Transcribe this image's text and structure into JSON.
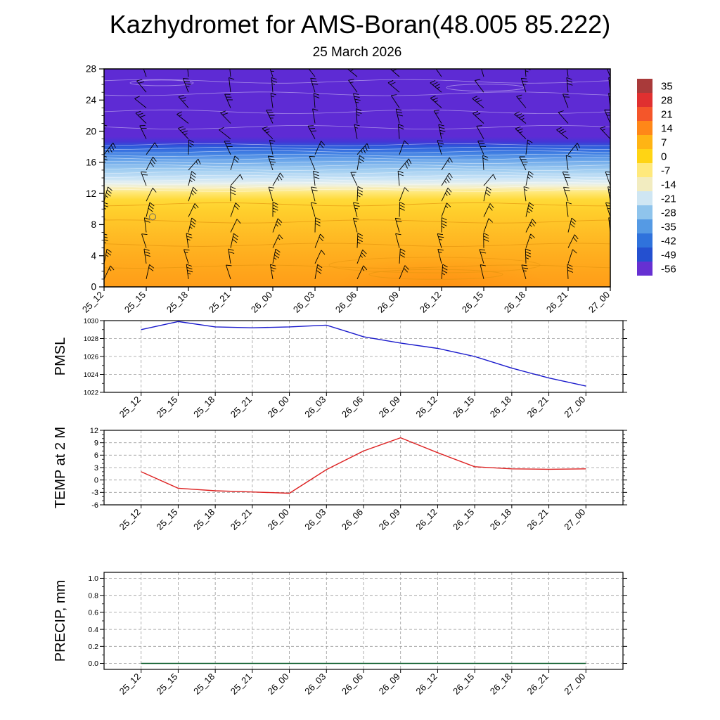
{
  "title": "Kazhydromet for AMS-Boran(48.005 85.222)",
  "subtitle": "25 March 2026",
  "time_labels": [
    "25_12",
    "25_15",
    "25_18",
    "25_21",
    "26_00",
    "26_03",
    "26_06",
    "26_09",
    "26_12",
    "26_15",
    "26_18",
    "26_21",
    "27_00"
  ],
  "chart_data": [
    {
      "type": "heatmap",
      "name": "Temperature-height cross section with wind barbs",
      "x": [
        "25_12",
        "25_15",
        "25_18",
        "25_21",
        "26_00",
        "26_03",
        "26_06",
        "26_09",
        "26_12",
        "26_15",
        "26_18",
        "26_21",
        "27_00"
      ],
      "ylim": [
        0,
        28
      ],
      "y_major_ticks": [
        0,
        4,
        8,
        12,
        16,
        20,
        24,
        28
      ],
      "gradient_stops": [
        {
          "at": 0.0,
          "color": "#5e2bd4"
        },
        {
          "at": 0.31,
          "color": "#5e2bd4"
        },
        {
          "at": 0.335,
          "color": "#4436d6"
        },
        {
          "at": 0.355,
          "color": "#2c58da"
        },
        {
          "at": 0.385,
          "color": "#3f7ee2"
        },
        {
          "at": 0.42,
          "color": "#6ca7ea"
        },
        {
          "at": 0.46,
          "color": "#9ccaf0"
        },
        {
          "at": 0.5,
          "color": "#c6e2f6"
        },
        {
          "at": 0.525,
          "color": "#e6f0ef"
        },
        {
          "at": 0.545,
          "color": "#f7efc0"
        },
        {
          "at": 0.565,
          "color": "#ffe97c"
        },
        {
          "at": 0.6,
          "color": "#ffda38"
        },
        {
          "at": 0.65,
          "color": "#ffcf2c"
        },
        {
          "at": 0.74,
          "color": "#ffbf26"
        },
        {
          "at": 0.86,
          "color": "#ffad1e"
        },
        {
          "at": 1.0,
          "color": "#ff9d18"
        }
      ],
      "overlays": {
        "striation_band": [
          12.4,
          18.6
        ],
        "white_contour_levels": [
          20.5,
          22.5,
          24.8,
          26.4
        ],
        "orange_contour_levels": [
          2.6,
          5.4,
          8.4,
          10.6
        ],
        "marker_circle": {
          "x_index": 1.15,
          "level": 9
        }
      },
      "colorbar": {
        "tick_labels": [
          "35",
          "28",
          "21",
          "14",
          "7",
          "0",
          "-7",
          "-14",
          "-21",
          "-28",
          "-35",
          "-42",
          "-49",
          "-56"
        ],
        "colors": [
          "#a93a3a",
          "#e03030",
          "#f4562a",
          "#ff8718",
          "#ffb414",
          "#ffd414",
          "#ffe97c",
          "#f2ecc0",
          "#cfe6f3",
          "#8fc4ec",
          "#559ae4",
          "#2f72dc",
          "#2450d0",
          "#6630d2"
        ]
      }
    },
    {
      "type": "line",
      "name": "PMSL",
      "color": "#1a1acc",
      "ylim": [
        1022,
        1030
      ],
      "y_major_ticks": [
        1022,
        1024,
        1026,
        1028,
        1030
      ],
      "y_tick_labels": [
        "1022",
        "1024",
        "1026",
        "1028",
        "1030"
      ],
      "y_minor_step": 1,
      "x": [
        "25_12",
        "25_15",
        "25_18",
        "25_21",
        "26_00",
        "26_03",
        "26_06",
        "26_09",
        "26_12",
        "26_15",
        "26_18",
        "26_21",
        "27_00"
      ],
      "values": [
        1029.0,
        1029.9,
        1029.3,
        1029.2,
        1029.3,
        1029.5,
        1028.2,
        1027.5,
        1026.9,
        1026.0,
        1024.7,
        1023.6,
        1022.7
      ]
    },
    {
      "type": "line",
      "name": "TEMP at 2 M",
      "color": "#dd2222",
      "ylim": [
        -6,
        12
      ],
      "y_major_ticks": [
        -6,
        -3,
        0,
        3,
        6,
        9,
        12
      ],
      "y_tick_labels": [
        "-6",
        "-3",
        "0",
        "3",
        "6",
        "9",
        "12"
      ],
      "y_minor_step": 1,
      "x": [
        "25_12",
        "25_15",
        "25_18",
        "25_21",
        "26_00",
        "26_03",
        "26_06",
        "26_09",
        "26_12",
        "26_15",
        "26_18",
        "26_21",
        "27_00"
      ],
      "values": [
        2.0,
        -2.0,
        -2.6,
        -2.9,
        -3.2,
        2.5,
        7.0,
        10.2,
        6.6,
        3.2,
        2.7,
        2.6,
        2.7
      ]
    },
    {
      "type": "line",
      "name": "PRECIP, mm",
      "color": "#0a5c2a",
      "ylim": [
        0,
        1
      ],
      "y_major_ticks": [
        0,
        0.2,
        0.4,
        0.6,
        0.8,
        1
      ],
      "y_tick_labels": [
        "0.0",
        "0.2",
        "0.4",
        "0.6",
        "0.8",
        "1.0"
      ],
      "y_minor_step": 0.1,
      "x": [
        "25_12",
        "25_15",
        "25_18",
        "25_21",
        "26_00",
        "26_03",
        "26_06",
        "26_09",
        "26_12",
        "26_15",
        "26_18",
        "26_21",
        "27_00"
      ],
      "values": [
        0,
        0,
        0,
        0,
        0,
        0,
        0,
        0,
        0,
        0,
        0,
        0,
        0
      ]
    }
  ]
}
